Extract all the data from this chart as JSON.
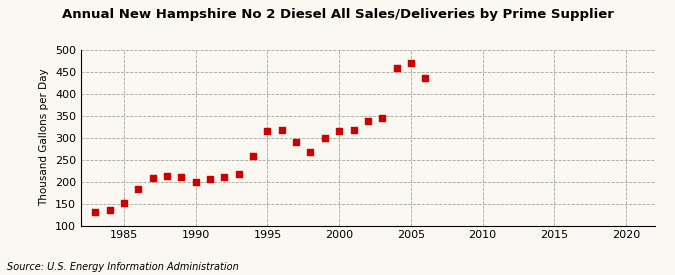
{
  "title": "Annual New Hampshire No 2 Diesel All Sales/Deliveries by Prime Supplier",
  "ylabel": "Thousand Gallons per Day",
  "source": "Source: U.S. Energy Information Administration",
  "background_color": "#faf8f0",
  "marker_color": "#cc0000",
  "years": [
    1983,
    1984,
    1985,
    1986,
    1987,
    1988,
    1989,
    1990,
    1991,
    1992,
    1993,
    1994,
    1995,
    1996,
    1997,
    1998,
    1999,
    2000,
    2001,
    2002,
    2003,
    2004,
    2005,
    2006
  ],
  "values": [
    130,
    135,
    152,
    183,
    208,
    213,
    210,
    200,
    205,
    210,
    218,
    258,
    315,
    318,
    290,
    267,
    300,
    315,
    318,
    338,
    345,
    458,
    470,
    435
  ],
  "ylim": [
    100,
    500
  ],
  "xlim": [
    1982,
    2022
  ],
  "yticks": [
    100,
    150,
    200,
    250,
    300,
    350,
    400,
    450,
    500
  ],
  "xticks": [
    1985,
    1990,
    1995,
    2000,
    2005,
    2010,
    2015,
    2020
  ]
}
